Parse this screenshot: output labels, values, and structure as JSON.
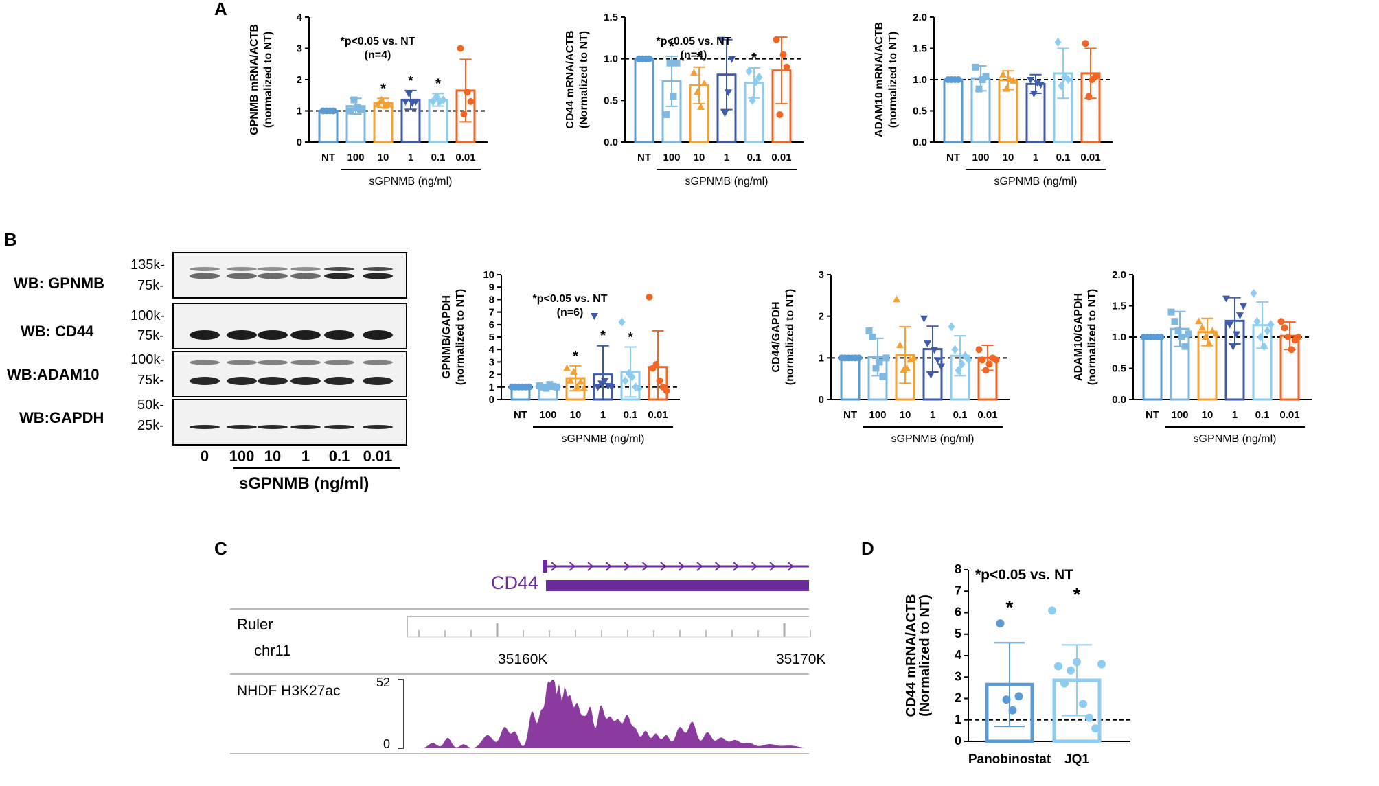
{
  "panel_labels": [
    "A",
    "B",
    "C",
    "D"
  ],
  "colors": {
    "NT": "#5b9bd5",
    "100": "#7fb8e0",
    "10": "#f5a030",
    "1": "#3f5aa8",
    "0.1": "#8ccdf0",
    "0.01": "#f26522",
    "track": "#6b2b9c",
    "cd44": "#6b2b9c"
  },
  "wb": {
    "rows": [
      {
        "name": "WB: GPNMB",
        "markers": [
          "135k-",
          "75k-"
        ]
      },
      {
        "name": "WB: CD44",
        "markers": [
          "100k-",
          "75k-"
        ]
      },
      {
        "name": "WB:ADAM10",
        "markers": [
          "100k-",
          "75k-"
        ]
      },
      {
        "name": "WB:GAPDH",
        "markers": [
          "50k-",
          "25k-"
        ]
      }
    ],
    "lanes": [
      "0",
      "100",
      "10",
      "1",
      "0.1",
      "0.01"
    ],
    "xlabel": "sGPNMB (ng/ml)"
  },
  "track": {
    "gene": "CD44",
    "ruler_label": "Ruler",
    "chrom": "chr11",
    "pos1": "35160K",
    "pos2": "35170K",
    "signal_label": "NHDF H3K27ac",
    "ymax": "52",
    "ymin": "0"
  },
  "chart_data": [
    {
      "type": "bar",
      "id": "A1",
      "categories": [
        "NT",
        "100",
        "10",
        "1",
        "0.1",
        "0.01"
      ],
      "values": [
        1.0,
        1.15,
        1.25,
        1.35,
        1.35,
        1.65
      ],
      "errors": [
        0.02,
        0.25,
        0.15,
        0.3,
        0.2,
        1.0
      ],
      "stars": [
        false,
        false,
        true,
        true,
        true,
        false
      ],
      "points": [
        [
          1,
          1,
          1,
          1
        ],
        [
          1.0,
          1.35,
          1.1,
          1.05
        ],
        [
          1.2,
          1.35,
          1.15,
          1.2
        ],
        [
          1.3,
          1.55,
          1.25,
          1.3
        ],
        [
          1.3,
          1.45,
          1.3,
          1.35
        ],
        [
          3.0,
          0.9,
          1.6,
          1.3
        ]
      ],
      "ylabel": [
        "GPNMB mRNA/ACTB",
        "(normalized to NT)"
      ],
      "ylim": [
        0,
        4
      ],
      "yticks": [
        "0",
        "1",
        "2",
        "3",
        "4"
      ],
      "xlabel": "sGPNMB (ng/ml)",
      "note": [
        "*p<0.05 vs. NT",
        "(n=4)"
      ],
      "refline": 1
    },
    {
      "type": "bar",
      "id": "A2",
      "categories": [
        "NT",
        "100",
        "10",
        "1",
        "0.1",
        "0.01"
      ],
      "values": [
        1.0,
        0.73,
        0.68,
        0.81,
        0.71,
        0.86
      ],
      "errors": [
        0.01,
        0.3,
        0.22,
        0.42,
        0.18,
        0.4
      ],
      "stars": [
        false,
        true,
        true,
        false,
        true,
        false
      ],
      "points": [
        [
          1,
          1,
          1,
          1
        ],
        [
          0.33,
          0.95,
          0.55,
          0.95
        ],
        [
          0.83,
          0.6,
          0.42,
          0.7
        ],
        [
          1.23,
          0.35,
          0.6,
          1.0
        ],
        [
          0.85,
          0.5,
          0.72,
          0.78
        ],
        [
          1.23,
          0.33,
          1.05,
          0.9
        ]
      ],
      "ylabel": [
        "CD44 mRNA/ACTB",
        "(Normalized to NT)"
      ],
      "ylim": [
        0,
        1.5
      ],
      "yticks": [
        "0.0",
        "0.5",
        "1.0",
        "1.5"
      ],
      "xlabel": "sGPNMB (ng/ml)",
      "note": [
        "*p<0.05 vs. NT",
        "(n=4)"
      ],
      "refline": 1
    },
    {
      "type": "bar",
      "id": "A3",
      "categories": [
        "NT",
        "100",
        "10",
        "1",
        "0.1",
        "0.01"
      ],
      "values": [
        1.0,
        1.02,
        0.99,
        0.93,
        1.1,
        1.1
      ],
      "errors": [
        0.01,
        0.2,
        0.15,
        0.15,
        0.4,
        0.4
      ],
      "stars": [
        false,
        false,
        false,
        false,
        false,
        false
      ],
      "points": [
        [
          1,
          1,
          1,
          1
        ],
        [
          1.2,
          0.85,
          1.0,
          1.05
        ],
        [
          1.08,
          0.85,
          1.0,
          0.98
        ],
        [
          1.0,
          0.78,
          0.95,
          0.92
        ],
        [
          1.6,
          0.9,
          1.05,
          1.0
        ],
        [
          1.58,
          0.73,
          1.0,
          1.05
        ]
      ],
      "ylabel": [
        "ADAM10 mRNA/ACTB",
        "(normalized to NT)"
      ],
      "ylim": [
        0,
        2
      ],
      "yticks": [
        "0.0",
        "0.5",
        "1.0",
        "1.5",
        "2.0"
      ],
      "xlabel": "sGPNMB (ng/ml)",
      "note": [],
      "refline": 1
    },
    {
      "type": "bar",
      "id": "B1",
      "categories": [
        "NT",
        "100",
        "10",
        "1",
        "0.1",
        "0.01"
      ],
      "values": [
        1.0,
        1.05,
        1.7,
        2.0,
        2.2,
        2.6
      ],
      "errors": [
        0.02,
        0.15,
        1.0,
        2.3,
        2.0,
        2.9
      ],
      "stars": [
        false,
        false,
        true,
        true,
        true,
        false
      ],
      "points": [
        [
          1,
          1,
          1,
          1,
          1,
          1
        ],
        [
          1.1,
          1.0,
          0.9,
          1.2,
          1.05,
          1.0
        ],
        [
          2.5,
          1.5,
          2.2,
          1.0,
          1.4,
          0.9
        ],
        [
          6.7,
          1.0,
          1.3,
          1.5,
          1.1,
          1.0
        ],
        [
          6.2,
          1.5,
          2.1,
          1.8,
          1.0,
          0.9
        ],
        [
          8.2,
          2.5,
          2.8,
          1.5,
          1.0,
          0.7
        ]
      ],
      "ylabel": [
        "GPNMB/GAPDH",
        "(normalized to NT)"
      ],
      "ylim": [
        0,
        10
      ],
      "yticks": [
        "0",
        "1",
        "2",
        "3",
        "4",
        "5",
        "6",
        "7",
        "8",
        "9",
        "10"
      ],
      "xlabel": "sGPNMB (ng/ml)",
      "note": [
        "*p<0.05 vs. NT",
        "(n=6)"
      ],
      "refline": 1
    },
    {
      "type": "bar",
      "id": "B2",
      "categories": [
        "NT",
        "100",
        "10",
        "1",
        "0.1",
        "0.01"
      ],
      "values": [
        1.0,
        1.02,
        1.07,
        1.21,
        1.05,
        1.0
      ],
      "errors": [
        0.01,
        0.45,
        0.68,
        0.55,
        0.48,
        0.3
      ],
      "stars": [
        false,
        false,
        false,
        false,
        false,
        false
      ],
      "points": [
        [
          1,
          1,
          1,
          1,
          1,
          1
        ],
        [
          1.65,
          1.5,
          0.75,
          0.9,
          0.55,
          1.0
        ],
        [
          2.4,
          1.3,
          0.7,
          0.75,
          0.95,
          1.0
        ],
        [
          1.95,
          1.35,
          0.6,
          1.2,
          0.95,
          0.8
        ],
        [
          1.75,
          1.2,
          0.7,
          0.85,
          1.05,
          0.95
        ],
        [
          1.2,
          0.95,
          0.7,
          0.85,
          1.0,
          0.95
        ]
      ],
      "ylabel": [
        "CD44/GAPDH",
        "(normalized to NT)"
      ],
      "ylim": [
        0,
        3
      ],
      "yticks": [
        "0",
        "1",
        "2",
        "3"
      ],
      "xlabel": "sGPNMB (ng/ml)",
      "note": [],
      "refline": 1
    },
    {
      "type": "bar",
      "id": "B3",
      "categories": [
        "NT",
        "100",
        "10",
        "1",
        "0.1",
        "0.01"
      ],
      "values": [
        1.0,
        1.13,
        1.08,
        1.26,
        1.19,
        1.02
      ],
      "errors": [
        0.01,
        0.28,
        0.22,
        0.37,
        0.37,
        0.22
      ],
      "stars": [
        false,
        false,
        false,
        false,
        false,
        false
      ],
      "points": [
        [
          1,
          1,
          1,
          1,
          1,
          1
        ],
        [
          1.4,
          1.25,
          1.1,
          1.0,
          0.85,
          1.05
        ],
        [
          1.25,
          1.15,
          1.0,
          0.9,
          1.1,
          1.05
        ],
        [
          1.62,
          1.2,
          0.85,
          1.05,
          1.35,
          1.5
        ],
        [
          1.7,
          1.25,
          1.0,
          0.85,
          1.1,
          1.2
        ],
        [
          1.25,
          1.15,
          1.0,
          0.8,
          0.95,
          1.0
        ]
      ],
      "ylabel": [
        "ADAM10/GAPDH",
        "(normalized to NT)"
      ],
      "ylim": [
        0,
        2
      ],
      "yticks": [
        "0.0",
        "0.5",
        "1.0",
        "1.5",
        "2.0"
      ],
      "xlabel": "sGPNMB (ng/ml)",
      "note": [],
      "refline": 1
    },
    {
      "type": "bar",
      "id": "D",
      "categories": [
        "Panobinostat",
        "JQ1"
      ],
      "values": [
        2.65,
        2.85
      ],
      "errors": [
        1.95,
        1.65
      ],
      "stars": [
        true,
        true
      ],
      "points": [
        [
          5.5,
          1.95,
          1.45,
          2.1
        ],
        [
          6.1,
          3.5,
          2.7,
          3.3,
          3.7,
          1.75,
          1.1,
          0.6,
          3.6
        ]
      ],
      "ylabel": [
        "CD44 mRNA/ACTB",
        "(Normalized to NT)"
      ],
      "ylim": [
        0,
        8
      ],
      "yticks": [
        "0",
        "1",
        "2",
        "3",
        "4",
        "5",
        "6",
        "7",
        "8"
      ],
      "xlabel": "",
      "note": [
        "*p<0.05 vs. NT"
      ],
      "refline": 1
    }
  ]
}
